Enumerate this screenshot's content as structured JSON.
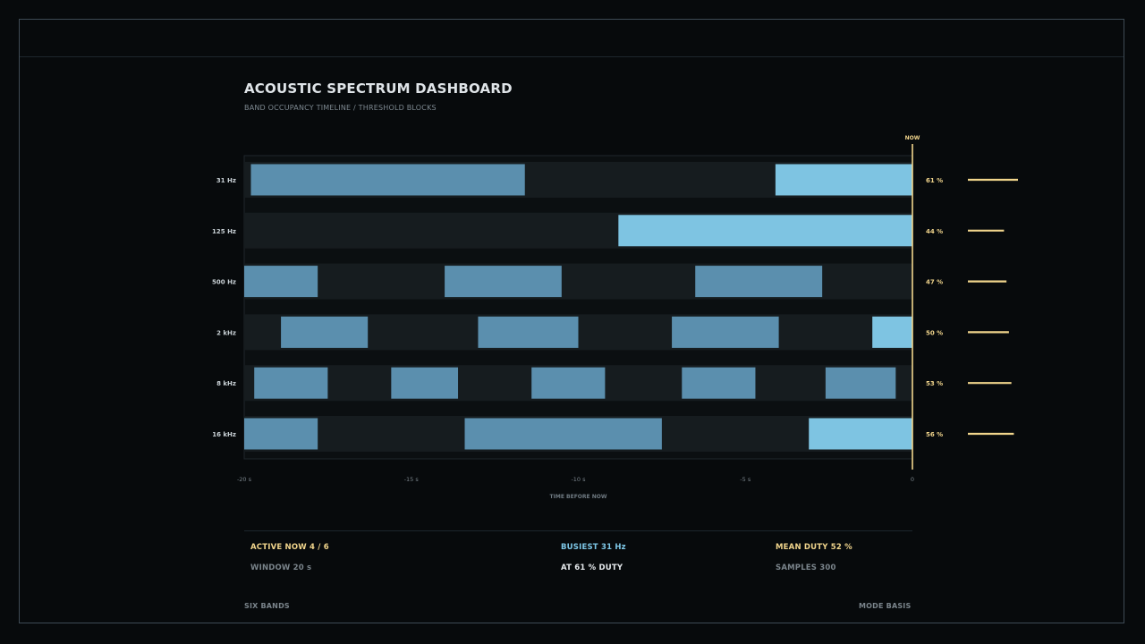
{
  "header": {
    "title": "ACOUSTIC SPECTRUM DASHBOARD",
    "subtitle": "BAND OCCUPANCY TIMELINE / THRESHOLD BLOCKS"
  },
  "colors": {
    "background": "#070a0c",
    "track": "#161c1f",
    "block_past": "#5b8fae",
    "block_active": "#7ec4e2",
    "now_line": "#f1d58c",
    "text_dim": "#7a848b"
  },
  "chart_data": {
    "type": "timeline",
    "xlabel": "TIME BEFORE NOW",
    "xlim": [
      -20,
      0
    ],
    "x_ticks": [
      {
        "value": -20,
        "label": "-20 s"
      },
      {
        "value": -15,
        "label": "-15 s"
      },
      {
        "value": -10,
        "label": "-10 s"
      },
      {
        "value": -5,
        "label": "-5 s"
      },
      {
        "value": 0,
        "label": "0"
      }
    ],
    "now_label": "NOW",
    "bands": [
      {
        "name": "31 Hz",
        "duty_label": "61 %",
        "duty": 61,
        "blocks": [
          [
            -19.8,
            -11.6
          ],
          [
            -4.1,
            0
          ]
        ],
        "active_now": true
      },
      {
        "name": "125 Hz",
        "duty_label": "44 %",
        "duty": 44,
        "blocks": [
          [
            -8.8,
            0
          ]
        ],
        "active_now": true
      },
      {
        "name": "500 Hz",
        "duty_label": "47 %",
        "duty": 47,
        "blocks": [
          [
            -20,
            -17.8
          ],
          [
            -14,
            -10.5
          ],
          [
            -6.5,
            -2.7
          ]
        ],
        "active_now": false
      },
      {
        "name": "2 kHz",
        "duty_label": "50 %",
        "duty": 50,
        "blocks": [
          [
            -18.9,
            -16.3
          ],
          [
            -13,
            -10
          ],
          [
            -7.2,
            -4
          ],
          [
            -1.2,
            0
          ]
        ],
        "active_now": true
      },
      {
        "name": "8 kHz",
        "duty_label": "53 %",
        "duty": 53,
        "blocks": [
          [
            -19.7,
            -17.5
          ],
          [
            -15.6,
            -13.6
          ],
          [
            -11.4,
            -9.2
          ],
          [
            -6.9,
            -4.7
          ],
          [
            -2.6,
            -0.5
          ]
        ],
        "active_now": false
      },
      {
        "name": "16 kHz",
        "duty_label": "56 %",
        "duty": 56,
        "blocks": [
          [
            -20,
            -17.8
          ],
          [
            -13.4,
            -7.5
          ],
          [
            -3.1,
            0
          ]
        ],
        "active_now": true
      }
    ]
  },
  "stats": {
    "active_now": "ACTIVE NOW 4 / 6",
    "window": "WINDOW 20 s",
    "busiest": "BUSIEST 31 Hz",
    "busiest_duty": "AT  61 % DUTY",
    "mean_duty": "MEAN DUTY  52 %",
    "samples": "SAMPLES 300"
  },
  "footer": {
    "left": "SIX BANDS",
    "right": "MODE BASIS"
  }
}
